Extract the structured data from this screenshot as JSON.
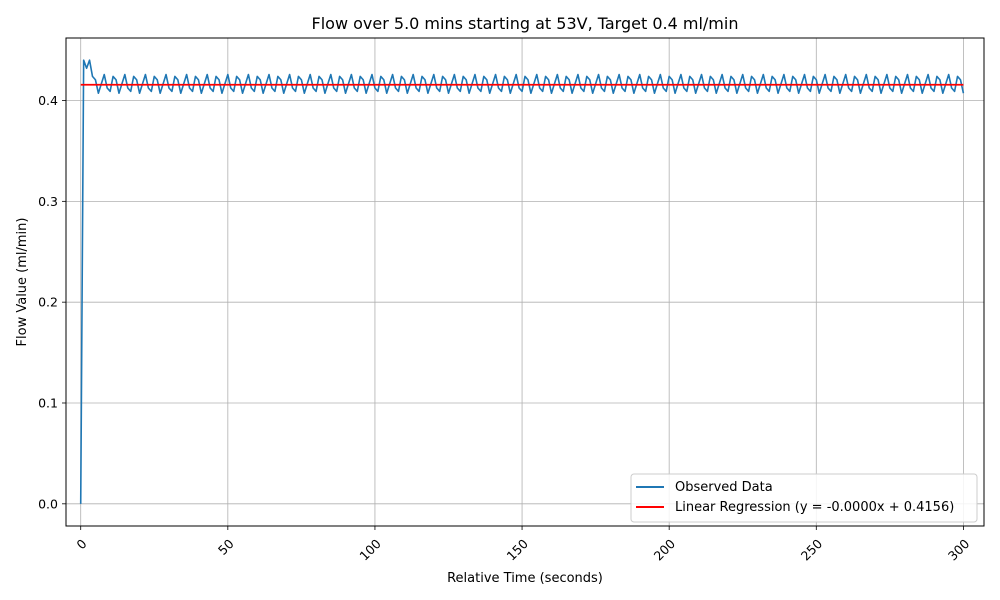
{
  "chart_data": {
    "type": "line",
    "title": "Flow over 5.0 mins starting at 53V, Target 0.4 ml/min",
    "xlabel": "Relative Time (seconds)",
    "ylabel": "Flow Value (ml/min)",
    "xlim": [
      -5,
      307
    ],
    "ylim": [
      -0.022,
      0.462
    ],
    "xticks": [
      0,
      50,
      100,
      150,
      200,
      250,
      300
    ],
    "yticks": [
      0.0,
      0.1,
      0.2,
      0.3,
      0.4
    ],
    "xtick_labels": [
      "0",
      "50",
      "100",
      "150",
      "200",
      "250",
      "300"
    ],
    "ytick_labels": [
      "0.0",
      "0.1",
      "0.2",
      "0.3",
      "0.4"
    ],
    "grid": true,
    "legend_position": "bottom-right",
    "series": [
      {
        "name": "Observed Data",
        "color": "#1f77b4",
        "style": "oscillating",
        "startup": {
          "x": [
            0,
            1,
            2,
            3
          ],
          "y": [
            0.0,
            0.44,
            0.432,
            0.44
          ]
        },
        "x_start": 3,
        "x_end": 300,
        "step": 1,
        "oscillation": {
          "low": 0.407,
          "high": 0.426,
          "period_seconds": 3.5
        }
      },
      {
        "name": "Linear Regression (y = -0.0000x + 0.4156)",
        "color": "#ff0000",
        "style": "regression",
        "slope": 0.0,
        "intercept": 0.4156,
        "x_range": [
          0,
          300
        ]
      }
    ]
  }
}
